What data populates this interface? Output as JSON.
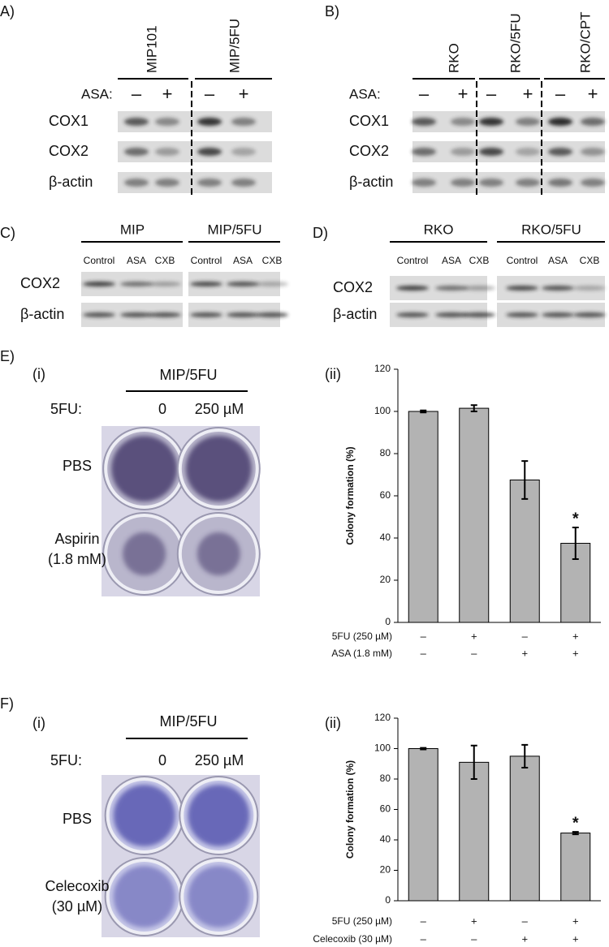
{
  "panels": [
    {
      "label": "A)",
      "groups": [
        "MIP101",
        "MIP/5FU"
      ],
      "treatment": "ASA:",
      "lanes": [
        "–",
        "+",
        "–",
        "+"
      ],
      "rows": [
        "COX1",
        "COX2",
        "β-actin"
      ]
    },
    {
      "label": "B)",
      "groups": [
        "RKO",
        "RKO/5FU",
        "RKO/CPT"
      ],
      "treatment": "ASA:",
      "lanes": [
        "–",
        "+",
        "–",
        "+",
        "–",
        "+"
      ],
      "rows": [
        "COX1",
        "COX2",
        "β-actin"
      ]
    },
    {
      "label": "C)",
      "groups": [
        "MIP",
        "MIP/5FU"
      ],
      "lanes": [
        "Control",
        "ASA",
        "CXB",
        "Control",
        "ASA",
        "CXB"
      ],
      "rows": [
        "COX2",
        "β-actin"
      ]
    },
    {
      "label": "D)",
      "groups": [
        "RKO",
        "RKO/5FU"
      ],
      "lanes": [
        "Control",
        "ASA",
        "CXB",
        "Control",
        "ASA",
        "CXB"
      ],
      "rows": [
        "COX2",
        "β-actin"
      ]
    },
    {
      "label": "E)",
      "sublabel": "(i)",
      "group": "MIP/5FU",
      "treatment": "5FU:",
      "doses": [
        "0",
        "250 µM"
      ],
      "rows": [
        [
          "PBS"
        ],
        [
          "Aspirin",
          "(1.8 mM)"
        ]
      ]
    },
    {
      "label": "F)",
      "sublabel": "(i)",
      "group": "MIP/5FU",
      "treatment": "5FU:",
      "doses": [
        "0",
        "250 µM"
      ],
      "rows": [
        [
          "PBS"
        ],
        [
          "Celecoxib",
          "(30 µM)"
        ]
      ]
    }
  ],
  "chart_data": [
    {
      "type": "bar",
      "title": "(ii)",
      "y_label": "Colony formation (%)",
      "color": "#b3b3b3",
      "values": [
        100,
        101.5,
        67.5,
        37.5
      ],
      "errors": [
        0.5,
        1.5,
        9,
        7.5
      ],
      "value_annotations": [
        null,
        null,
        null,
        "*"
      ],
      "conditions": [
        {
          "label": "5FU (250 µM)",
          "signs": [
            "–",
            "+",
            "–",
            "+"
          ]
        },
        {
          "label": "ASA (1.8 mM)",
          "signs": [
            "–",
            "–",
            "+",
            "+"
          ]
        }
      ],
      "ylim": [
        0,
        120
      ],
      "yticks": [
        0,
        20,
        40,
        60,
        80,
        100,
        120
      ]
    },
    {
      "type": "bar",
      "title": "(ii)",
      "y_label": "Colony formation (%)",
      "color": "#b3b3b3",
      "values": [
        100,
        91,
        95,
        44.5
      ],
      "errors": [
        0.5,
        11,
        7.5,
        0.8
      ],
      "value_annotations": [
        null,
        null,
        null,
        "*"
      ],
      "conditions": [
        {
          "label": "5FU (250 µM)",
          "signs": [
            "–",
            "+",
            "–",
            "+"
          ]
        },
        {
          "label": "Celecoxib (30 µM)",
          "signs": [
            "–",
            "–",
            "+",
            "+"
          ]
        }
      ],
      "ylim": [
        0,
        120
      ],
      "yticks": [
        0,
        20,
        40,
        60,
        80,
        100,
        120
      ]
    }
  ]
}
